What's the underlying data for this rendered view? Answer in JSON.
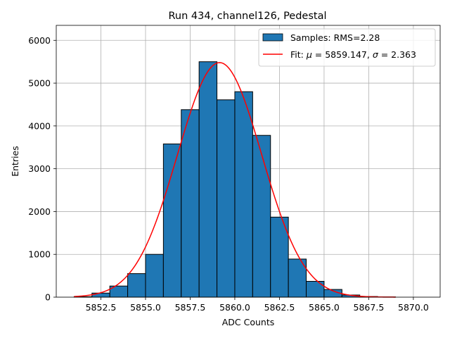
{
  "chart_data": {
    "type": "bar",
    "title": "Run 434, channel126, Pedestal",
    "xlabel": "ADC Counts",
    "ylabel": "Entries",
    "xlim": [
      5850.0,
      5871.5
    ],
    "ylim": [
      0,
      6350
    ],
    "grid": true,
    "legend_position": "top-right",
    "x_ticks": [
      5852.5,
      5855.0,
      5857.5,
      5860.0,
      5862.5,
      5865.0,
      5867.5,
      5870.0
    ],
    "x_tick_labels": [
      "5852.5",
      "5855.0",
      "5857.5",
      "5860.0",
      "5862.5",
      "5865.0",
      "5867.5",
      "5870.0"
    ],
    "y_ticks": [
      0,
      1000,
      2000,
      3000,
      4000,
      5000,
      6000
    ],
    "y_tick_labels": [
      "0",
      "1000",
      "2000",
      "3000",
      "4000",
      "5000",
      "6000"
    ],
    "histogram": {
      "name": "Samples: RMS=2.28",
      "bin_edges": [
        5851,
        5852,
        5853,
        5854,
        5855,
        5856,
        5857,
        5858,
        5859,
        5860,
        5861,
        5862,
        5863,
        5864,
        5865,
        5866,
        5867,
        5868,
        5869,
        5870,
        5871
      ],
      "counts": [
        10,
        95,
        260,
        550,
        1000,
        3580,
        4380,
        5500,
        4610,
        4800,
        3780,
        1870,
        890,
        370,
        180,
        50,
        15,
        5,
        0,
        0
      ],
      "color": "#1f77b4",
      "edgecolor": "#000000"
    },
    "fit": {
      "name": "Fit: $\\mu$ = 5859.147, $\\sigma$ = 2.363",
      "mu": 5859.147,
      "sigma": 2.363,
      "amplitude": 5480,
      "x_range": [
        5851,
        5869
      ],
      "color": "#ff0000"
    },
    "legend": {
      "entries": [
        {
          "prefix": "Samples: RMS=2.28",
          "symbol_1": "",
          "middle": "",
          "symbol_2": "",
          "suffix": ""
        },
        {
          "prefix": "Fit: ",
          "symbol_1": "μ",
          "middle": " = 5859.147, ",
          "symbol_2": "σ",
          "suffix": " = 2.363"
        }
      ]
    }
  }
}
